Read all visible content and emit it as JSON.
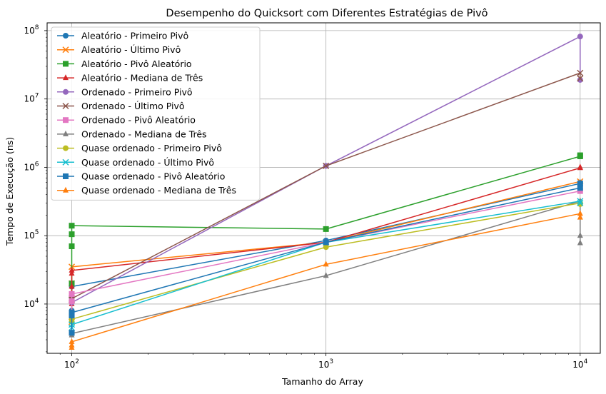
{
  "chart_data": {
    "type": "line",
    "title": "Desempenho do Quicksort com Diferentes Estratégias de Pivô",
    "xlabel": "Tamanho do Array",
    "ylabel": "Tempo de Execução (ns)",
    "xscale": "log",
    "yscale": "log",
    "xlim": [
      80,
      12000
    ],
    "ylim": [
      1900,
      130000000
    ],
    "x": [
      100,
      1000,
      10000
    ],
    "xticks": [
      {
        "value": 100,
        "base": "10",
        "exp": "2"
      },
      {
        "value": 1000,
        "base": "10",
        "exp": "3"
      },
      {
        "value": 10000,
        "base": "10",
        "exp": "4"
      }
    ],
    "yticks": [
      {
        "value": 10000,
        "base": "10",
        "exp": "4"
      },
      {
        "value": 100000,
        "base": "10",
        "exp": "5"
      },
      {
        "value": 1000000,
        "base": "10",
        "exp": "6"
      },
      {
        "value": 10000000,
        "base": "10",
        "exp": "7"
      },
      {
        "value": 100000000,
        "base": "10",
        "exp": "8"
      }
    ],
    "grid": true,
    "legend": "upper-left",
    "series": [
      {
        "name": "Aleatório - Primeiro Pivô",
        "color": "#1f77b4",
        "marker": "circle",
        "points": [
          [
            100,
            8000
          ],
          [
            100,
            12000
          ],
          [
            100,
            18000
          ],
          [
            1000,
            85000
          ],
          [
            10000,
            580000
          ],
          [
            10000,
            600000
          ]
        ]
      },
      {
        "name": "Aleatório - Último Pivô",
        "color": "#ff7f0e",
        "marker": "x",
        "points": [
          [
            100,
            5500
          ],
          [
            100,
            20000
          ],
          [
            100,
            35000
          ],
          [
            1000,
            80000
          ],
          [
            10000,
            620000
          ]
        ]
      },
      {
        "name": "Aleatório - Pivô Aleatório",
        "color": "#2ca02c",
        "marker": "square",
        "points": [
          [
            100,
            11000
          ],
          [
            100,
            20000
          ],
          [
            100,
            70000
          ],
          [
            100,
            105000
          ],
          [
            100,
            140000
          ],
          [
            1000,
            125000
          ],
          [
            10000,
            1450000
          ],
          [
            10000,
            1500000
          ]
        ]
      },
      {
        "name": "Aleatório - Mediana de Três",
        "color": "#d62728",
        "marker": "triangle",
        "points": [
          [
            100,
            10000
          ],
          [
            100,
            18000
          ],
          [
            100,
            28000
          ],
          [
            100,
            31000
          ],
          [
            1000,
            80000
          ],
          [
            10000,
            980000
          ],
          [
            10000,
            1000000
          ]
        ]
      },
      {
        "name": "Ordenado - Primeiro Pivô",
        "color": "#9467bd",
        "marker": "circle",
        "points": [
          [
            100,
            11000
          ],
          [
            100,
            10500
          ],
          [
            1000,
            1050000
          ],
          [
            10000,
            82000000
          ],
          [
            10000,
            19000000
          ]
        ]
      },
      {
        "name": "Ordenado - Último Pivô",
        "color": "#8c564b",
        "marker": "x",
        "points": [
          [
            100,
            11500
          ],
          [
            100,
            12000
          ],
          [
            1000,
            1050000
          ],
          [
            10000,
            24000000
          ],
          [
            10000,
            20000000
          ]
        ]
      },
      {
        "name": "Ordenado - Pivô Aleatório",
        "color": "#e377c2",
        "marker": "square",
        "points": [
          [
            100,
            7000
          ],
          [
            100,
            11000
          ],
          [
            100,
            14000
          ],
          [
            1000,
            80000
          ],
          [
            10000,
            450000
          ]
        ]
      },
      {
        "name": "Ordenado - Mediana de Três",
        "color": "#7f7f7f",
        "marker": "triangle",
        "points": [
          [
            100,
            3500
          ],
          [
            100,
            3700
          ],
          [
            1000,
            26000
          ],
          [
            10000,
            320000
          ],
          [
            10000,
            100000
          ],
          [
            10000,
            78000
          ]
        ]
      },
      {
        "name": "Quase ordenado - Primeiro Pivô",
        "color": "#bcbd22",
        "marker": "circle",
        "points": [
          [
            100,
            5500
          ],
          [
            100,
            6000
          ],
          [
            1000,
            68000
          ],
          [
            10000,
            300000
          ],
          [
            10000,
            290000
          ]
        ]
      },
      {
        "name": "Quase ordenado - Último Pivô",
        "color": "#17becf",
        "marker": "x",
        "points": [
          [
            100,
            4500
          ],
          [
            100,
            5000
          ],
          [
            1000,
            80000
          ],
          [
            10000,
            320000
          ],
          [
            10000,
            300000
          ]
        ]
      },
      {
        "name": "Quase ordenado - Pivô Aleatório",
        "color": "#1f77b4",
        "marker": "square",
        "points": [
          [
            100,
            3800
          ],
          [
            100,
            6800
          ],
          [
            100,
            7500
          ],
          [
            1000,
            80000
          ],
          [
            10000,
            500000
          ],
          [
            10000,
            580000
          ]
        ]
      },
      {
        "name": "Quase ordenado - Mediana de Três",
        "color": "#ff7f0e",
        "marker": "triangle",
        "points": [
          [
            100,
            2300
          ],
          [
            100,
            2500
          ],
          [
            100,
            2800
          ],
          [
            1000,
            38000
          ],
          [
            10000,
            210000
          ],
          [
            10000,
            185000
          ]
        ]
      }
    ]
  }
}
